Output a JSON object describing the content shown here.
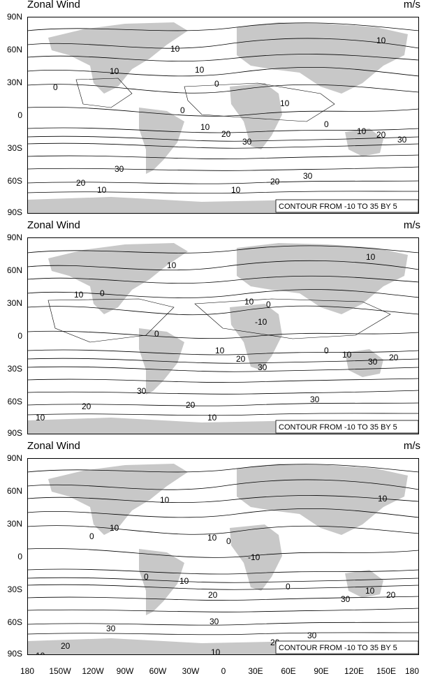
{
  "panels": [
    {
      "title": "Zonal Wind",
      "units": "m/s",
      "note": "CONTOUR FROM -10 TO 35 BY 5",
      "contour_labels": [
        "10",
        "10",
        "10",
        "0",
        "10",
        "0",
        "10",
        "0",
        "10",
        "10",
        "20",
        "30",
        "20",
        "30",
        "30",
        "30",
        "20",
        "10",
        "10",
        "20",
        "0"
      ]
    },
    {
      "title": "Zonal Wind",
      "units": "m/s",
      "note": "CONTOUR FROM -10 TO 35 BY 5",
      "contour_labels": [
        "10",
        "10",
        "10",
        "0",
        "0",
        "10",
        "0",
        "-10",
        "10",
        "20",
        "30",
        "0",
        "10",
        "20",
        "30",
        "30",
        "20",
        "30",
        "10",
        "10",
        "20"
      ]
    },
    {
      "title": "Zonal Wind",
      "units": "m/s",
      "note": "CONTOUR FROM -10 TO 35 BY 5",
      "contour_labels": [
        "10",
        "10",
        "10",
        "0",
        "10",
        "0",
        "-10",
        "0",
        "10",
        "0",
        "20",
        "10",
        "30",
        "20",
        "30",
        "30",
        "30",
        "20",
        "10",
        "10",
        "20"
      ]
    }
  ],
  "y_ticks": [
    "90N",
    "60N",
    "30N",
    "0",
    "30S",
    "60S",
    "90S"
  ],
  "x_ticks": [
    "180",
    "150W",
    "120W",
    "90W",
    "60W",
    "30W",
    "0",
    "30E",
    "60E",
    "90E",
    "120E",
    "150E",
    "180"
  ],
  "colors": {
    "land": "#c8c8c8",
    "contour": "#000000",
    "frame": "#000000"
  }
}
